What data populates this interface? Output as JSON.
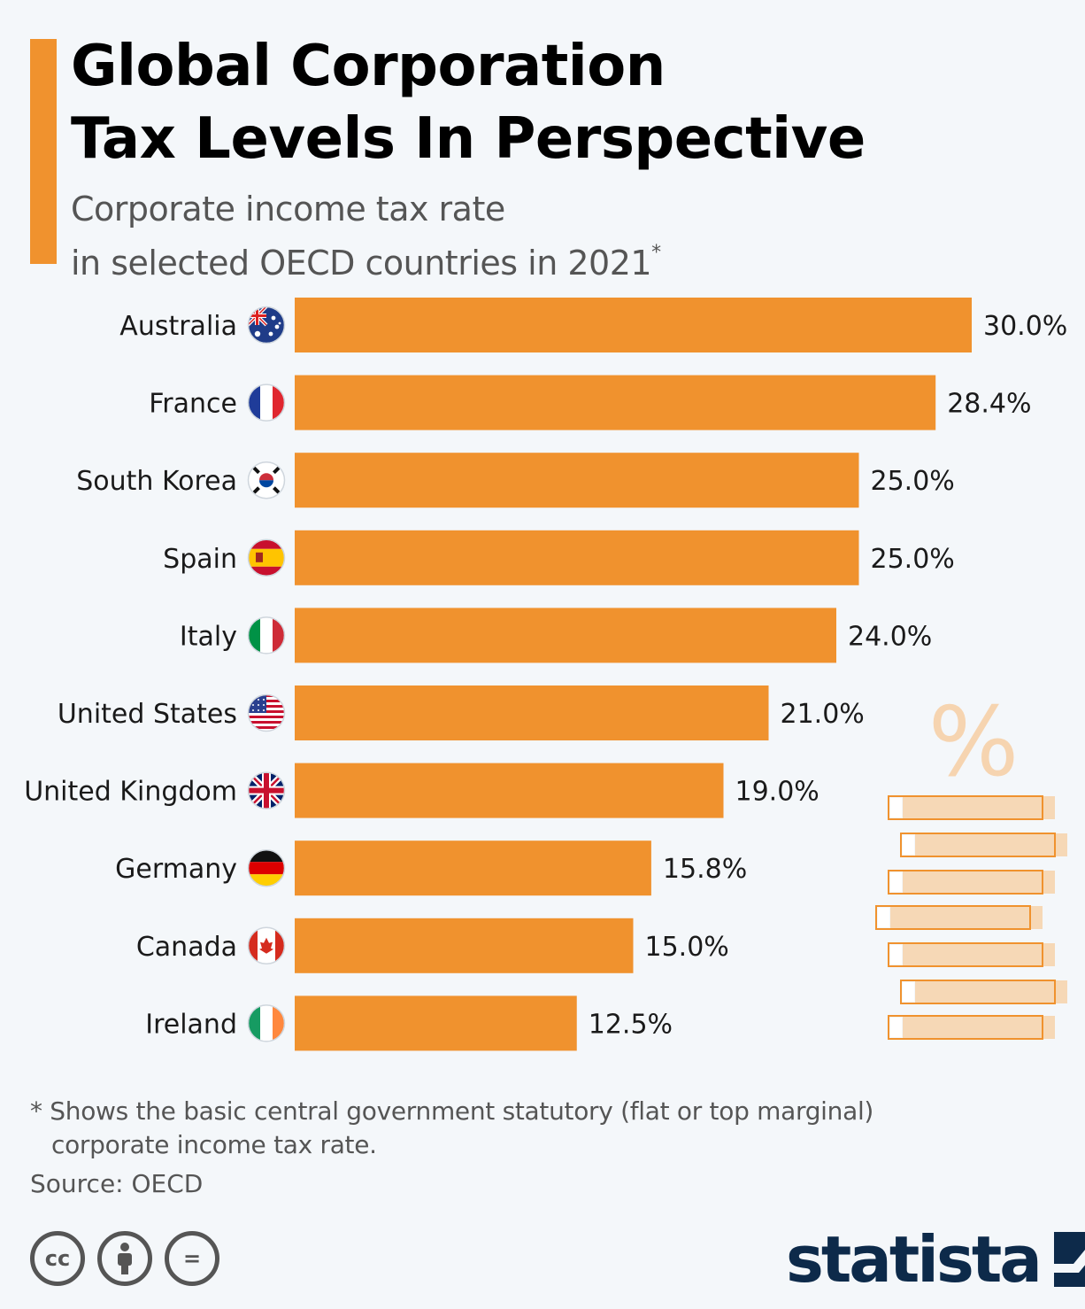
{
  "header": {
    "title_line1": "Global Corporation",
    "title_line2": "Tax Levels In Perspective",
    "subtitle_line1": "Corporate income tax rate",
    "subtitle_line2": "in selected OECD countries in 2021",
    "subtitle_mark": "*"
  },
  "chart_data": {
    "type": "bar",
    "orientation": "horizontal",
    "categories": [
      "Australia",
      "France",
      "South Korea",
      "Spain",
      "Italy",
      "United States",
      "United Kingdom",
      "Germany",
      "Canada",
      "Ireland"
    ],
    "values": [
      30.0,
      28.4,
      25.0,
      25.0,
      24.0,
      21.0,
      19.0,
      15.8,
      15.0,
      12.5
    ],
    "value_labels": [
      "30.0%",
      "28.4%",
      "25.0%",
      "25.0%",
      "24.0%",
      "21.0%",
      "19.0%",
      "15.8%",
      "15.0%",
      "12.5%"
    ],
    "bar_color": "#f0922e",
    "grid": false,
    "legend": "none",
    "decoration_symbol": "%"
  },
  "flags": [
    "australia-flag-icon",
    "france-flag-icon",
    "south-korea-flag-icon",
    "spain-flag-icon",
    "italy-flag-icon",
    "united-states-flag-icon",
    "united-kingdom-flag-icon",
    "germany-flag-icon",
    "canada-flag-icon",
    "ireland-flag-icon"
  ],
  "footer": {
    "footnote_line1": "* Shows the basic central government statutory (flat or top marginal)",
    "footnote_line2": "corporate income tax rate.",
    "source": "Source: OECD",
    "license_icons": [
      "creative-commons-icon",
      "attribution-icon",
      "no-derivatives-icon"
    ],
    "cc_label": "cc",
    "nd_label": "=",
    "brand": "statista"
  },
  "colors": {
    "accent": "#f0922e",
    "background": "#f4f7fa",
    "brand": "#0d2a4a"
  }
}
